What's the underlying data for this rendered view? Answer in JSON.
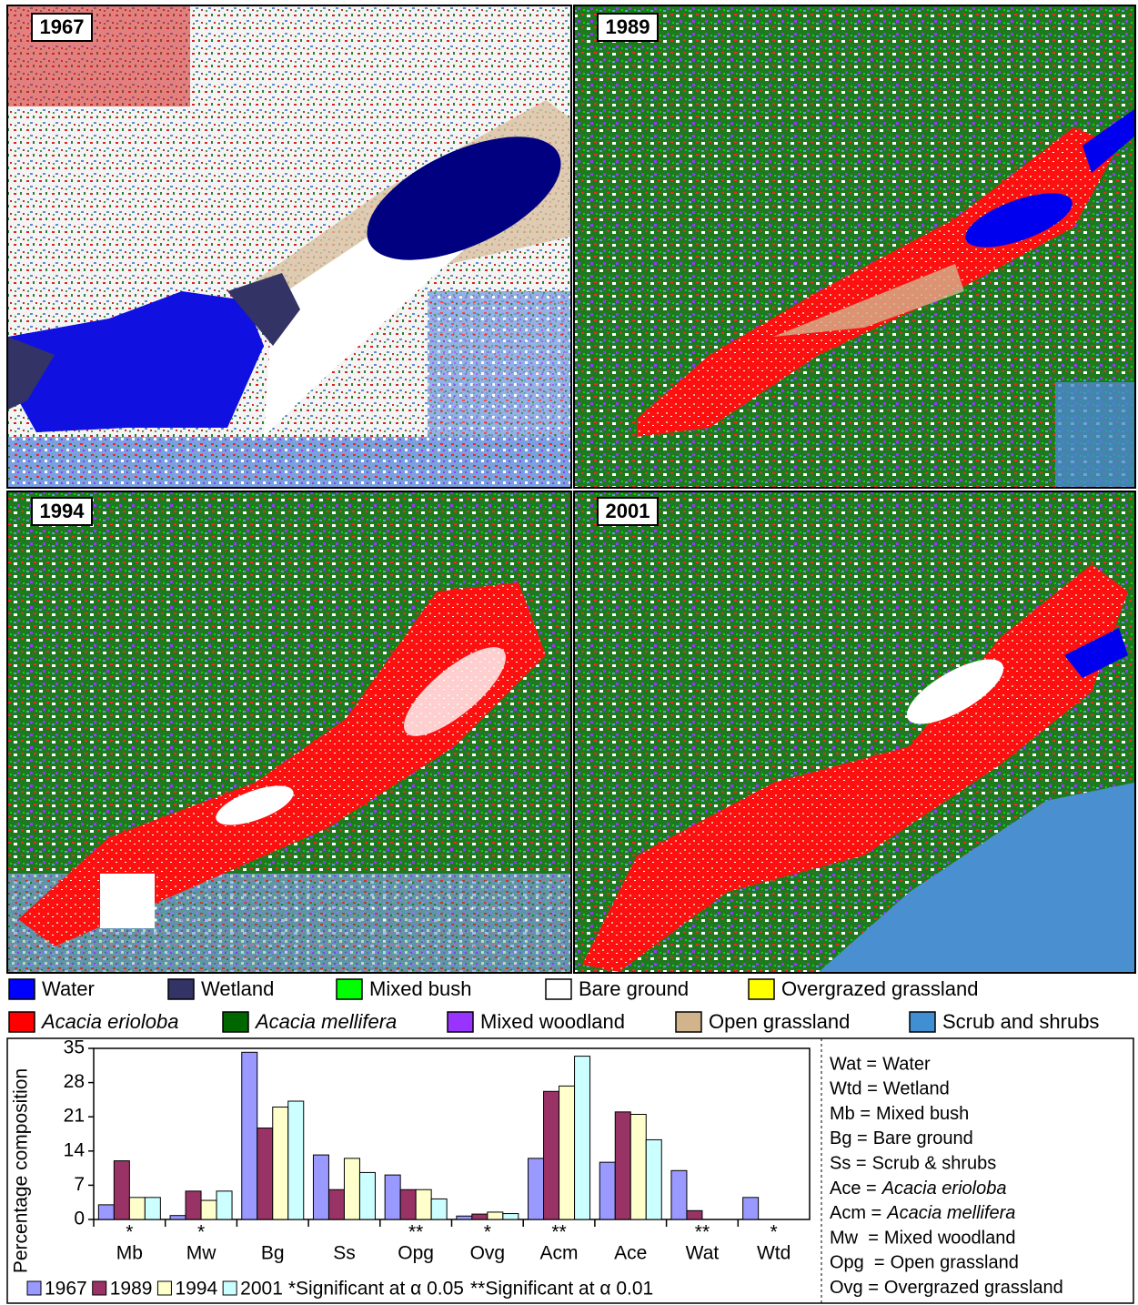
{
  "panels": [
    "1967",
    "1989",
    "1994",
    "2001"
  ],
  "land_cover_legend": [
    {
      "name": "Water",
      "color": "#0000ff"
    },
    {
      "name": "Wetland",
      "color": "#333366"
    },
    {
      "name": "Mixed bush",
      "color": "#00ff00"
    },
    {
      "name": "Bare ground",
      "color": "#ffffff"
    },
    {
      "name": "Overgrazed grassland",
      "color": "#ffff00"
    },
    {
      "name": "Acacia erioloba",
      "color": "#ff0000",
      "italic": true
    },
    {
      "name": "Acacia mellifera",
      "color": "#006600",
      "italic": true
    },
    {
      "name": "Mixed woodland",
      "color": "#9933ff"
    },
    {
      "name": "Open grassland",
      "color": "#d2b48c"
    },
    {
      "name": "Scrub and shrubs",
      "color": "#3f8fd2"
    }
  ],
  "chart_data": {
    "type": "bar",
    "y_label": "Percentage composition",
    "categories": [
      "Mb",
      "Mw",
      "Bg",
      "Ss",
      "Opg",
      "Ovg",
      "Acm",
      "Ace",
      "Wat",
      "Wtd"
    ],
    "significance": [
      "*",
      "*",
      null,
      null,
      "**",
      "*",
      "**",
      null,
      "**",
      "*"
    ],
    "series": [
      {
        "name": "1967",
        "color": "#9999ff",
        "values": [
          3.0,
          0.8,
          34.2,
          13.2,
          9.1,
          0.7,
          12.5,
          11.7,
          10.0,
          4.5
        ]
      },
      {
        "name": "1989",
        "color": "#993366",
        "values": [
          12.0,
          5.8,
          18.7,
          6.1,
          6.1,
          1.1,
          26.2,
          22.0,
          1.8,
          0
        ]
      },
      {
        "name": "1994",
        "color": "#ffffcc",
        "values": [
          4.5,
          3.9,
          23.0,
          12.5,
          6.1,
          1.5,
          27.3,
          21.5,
          0,
          0
        ]
      },
      {
        "name": "2001",
        "color": "#ccffff",
        "values": [
          4.5,
          5.8,
          24.2,
          9.6,
          4.2,
          1.2,
          33.4,
          16.3,
          0,
          0
        ]
      }
    ],
    "notes": [
      "*Significant at α 0.05",
      "**Significant at α 0.01"
    ],
    "ylim": [
      0,
      35
    ],
    "yticks": [
      0,
      7,
      14,
      21,
      28,
      35
    ]
  },
  "abbreviations": [
    {
      "abbr": "Wat =",
      "full": "Water"
    },
    {
      "abbr": "Wtd =",
      "full": "Wetland"
    },
    {
      "abbr": "Mb =",
      "full": "Mixed bush"
    },
    {
      "abbr": "Bg =",
      "full": "Bare ground"
    },
    {
      "abbr": "Ss =",
      "full": "Scrub & shrubs"
    },
    {
      "abbr": "Ace =",
      "full": "Acacia erioloba",
      "italic": true
    },
    {
      "abbr": "Acm =",
      "full": "Acacia mellifera",
      "italic": true
    },
    {
      "abbr": "Mw  =",
      "full": "Mixed woodland"
    },
    {
      "abbr": "Opg  =",
      "full": "Open grassland"
    },
    {
      "abbr": "Ovg =",
      "full": "Overgrazed grassland"
    }
  ]
}
